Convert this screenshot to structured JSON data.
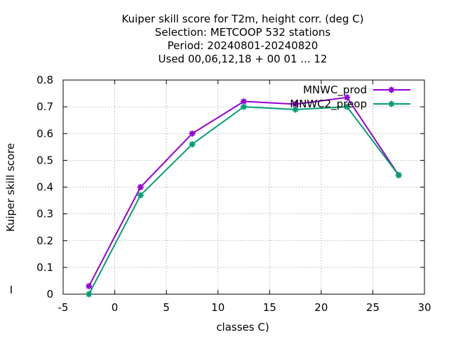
{
  "chart_data": {
    "type": "line",
    "title_lines": [
      "Kuiper skill score  for T2m, height corr. (deg C)",
      "Selection: METCOOP    532 stations",
      "Period: 20240801-20240820",
      "Used  00,06,12,18 + 00 01 ... 12"
    ],
    "xlabel": "classes C)",
    "ylabel": "Kuiper skill score",
    "xlim": [
      -5,
      30
    ],
    "ylim": [
      0,
      0.8
    ],
    "xticks": [
      -5,
      0,
      5,
      10,
      15,
      20,
      25,
      30
    ],
    "yticks": [
      0,
      0.1,
      0.2,
      0.3,
      0.4,
      0.5,
      0.6,
      0.7,
      0.8
    ],
    "grid": true,
    "legend_position": "top-right",
    "stray_mark": "I",
    "series": [
      {
        "name": "MNWC_prod",
        "color": "#9400d3",
        "x": [
          -2.5,
          2.5,
          7.5,
          12.5,
          17.5,
          22.5,
          27.5
        ],
        "y": [
          0.03,
          0.4,
          0.6,
          0.72,
          0.71,
          0.735,
          0.445
        ]
      },
      {
        "name": "MNWC2_preop",
        "color": "#009e73",
        "x": [
          -2.5,
          2.5,
          7.5,
          12.5,
          17.5,
          22.5,
          27.5
        ],
        "y": [
          0.0,
          0.37,
          0.56,
          0.7,
          0.69,
          0.7,
          0.445
        ]
      }
    ]
  }
}
